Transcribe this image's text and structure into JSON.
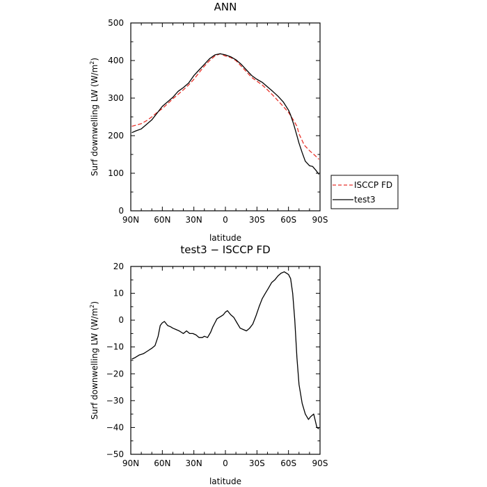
{
  "chart_data": [
    {
      "type": "line",
      "title": "ANN",
      "xlabel": "latitude",
      "ylabel": "Surf downwelling LW (W/m²)",
      "ylabel_main": "Surf downwelling LW (W/m",
      "ylabel_sup": "2",
      "ylabel_close": ")",
      "xlim": [
        90,
        -90
      ],
      "ylim": [
        0,
        500
      ],
      "xticks": [
        90,
        60,
        30,
        0,
        -30,
        -60,
        -90
      ],
      "xtick_labels": [
        "90N",
        "60N",
        "30N",
        "0",
        "30S",
        "60S",
        "90S"
      ],
      "yticks": [
        0,
        100,
        200,
        300,
        400,
        500
      ],
      "ytick_labels": [
        "0",
        "100",
        "200",
        "300",
        "400",
        "500"
      ],
      "legend": {
        "position": "right",
        "entries": [
          "ISCCP FD",
          "test3"
        ]
      },
      "series": [
        {
          "name": "ISCCP FD",
          "color": "#e8322a",
          "dash": "dashed",
          "x": [
            89,
            85,
            80,
            75,
            70,
            65,
            60,
            55,
            50,
            45,
            40,
            35,
            30,
            25,
            20,
            15,
            10,
            5,
            0,
            -5,
            -10,
            -15,
            -20,
            -25,
            -30,
            -35,
            -40,
            -45,
            -50,
            -55,
            -60,
            -65,
            -68,
            -70,
            -75,
            -80,
            -85,
            -89
          ],
          "y": [
            225,
            228,
            232,
            240,
            250,
            262,
            272,
            285,
            298,
            310,
            322,
            335,
            350,
            368,
            385,
            400,
            412,
            418,
            412,
            408,
            400,
            385,
            370,
            355,
            345,
            335,
            322,
            308,
            293,
            278,
            262,
            240,
            225,
            205,
            175,
            160,
            148,
            137
          ]
        },
        {
          "name": "test3",
          "color": "#000000",
          "dash": "solid",
          "x": [
            89,
            85,
            80,
            75,
            70,
            65,
            60,
            55,
            50,
            45,
            40,
            35,
            30,
            25,
            20,
            15,
            10,
            5,
            0,
            -5,
            -10,
            -15,
            -20,
            -25,
            -30,
            -35,
            -40,
            -45,
            -50,
            -55,
            -60,
            -62,
            -65,
            -68,
            -70,
            -73,
            -76,
            -80,
            -83,
            -86,
            -89
          ],
          "y": [
            208,
            213,
            218,
            230,
            242,
            260,
            278,
            290,
            302,
            318,
            328,
            340,
            360,
            375,
            390,
            405,
            415,
            418,
            415,
            410,
            402,
            390,
            375,
            360,
            350,
            342,
            330,
            318,
            305,
            290,
            268,
            255,
            230,
            200,
            180,
            155,
            132,
            120,
            118,
            108,
            97
          ]
        }
      ]
    },
    {
      "type": "line",
      "title": "test3 − ISCCP FD",
      "xlabel": "latitude",
      "ylabel": "Surf downwelling LW (W/m²)",
      "ylabel_main": "Surf downwelling LW (W/m",
      "ylabel_sup": "2",
      "ylabel_close": ")",
      "xlim": [
        90,
        -90
      ],
      "ylim": [
        -50,
        20
      ],
      "xticks": [
        90,
        60,
        30,
        0,
        -30,
        -60,
        -90
      ],
      "xtick_labels": [
        "90N",
        "60N",
        "30N",
        "0",
        "30S",
        "60S",
        "90S"
      ],
      "yticks": [
        -50,
        -40,
        -30,
        -20,
        -10,
        0,
        10,
        20
      ],
      "ytick_labels": [
        "−50",
        "−40",
        "−30",
        "−20",
        "−10",
        "0",
        "10",
        "20"
      ],
      "series": [
        {
          "color": "#000000",
          "dash": "solid",
          "x": [
            89,
            86,
            82,
            78,
            74,
            70,
            67,
            64,
            62,
            60,
            58,
            55,
            52,
            50,
            47,
            44,
            42,
            40,
            37,
            34,
            31,
            28,
            25,
            22,
            20,
            17,
            14,
            12,
            10,
            8,
            6,
            4,
            2,
            0,
            -2,
            -5,
            -8,
            -11,
            -14,
            -17,
            -20,
            -23,
            -26,
            -29,
            -32,
            -35,
            -38,
            -41,
            -44,
            -47,
            -50,
            -53,
            -56,
            -58,
            -60,
            -62,
            -64,
            -66,
            -68,
            -70,
            -73,
            -76,
            -79,
            -81,
            -84,
            -87,
            -89
          ],
          "y": [
            -14.5,
            -14,
            -13,
            -12.5,
            -11.5,
            -10.5,
            -9.5,
            -6,
            -2,
            -1,
            -0.5,
            -2,
            -2.5,
            -3,
            -3.5,
            -4,
            -4.5,
            -5,
            -4,
            -5,
            -5,
            -5.5,
            -6.5,
            -6.5,
            -6,
            -6.5,
            -4.5,
            -2.5,
            -1,
            0.5,
            1,
            1.5,
            2,
            3,
            3.5,
            2,
            1,
            -1,
            -3,
            -3.5,
            -4,
            -3,
            -1.5,
            1.5,
            5,
            8,
            10,
            12,
            14,
            15,
            16.5,
            17.5,
            18,
            17.5,
            17,
            15.5,
            10,
            0,
            -14,
            -24,
            -31,
            -35,
            -37,
            -36,
            -35,
            -40,
            -40.5
          ]
        }
      ]
    }
  ]
}
